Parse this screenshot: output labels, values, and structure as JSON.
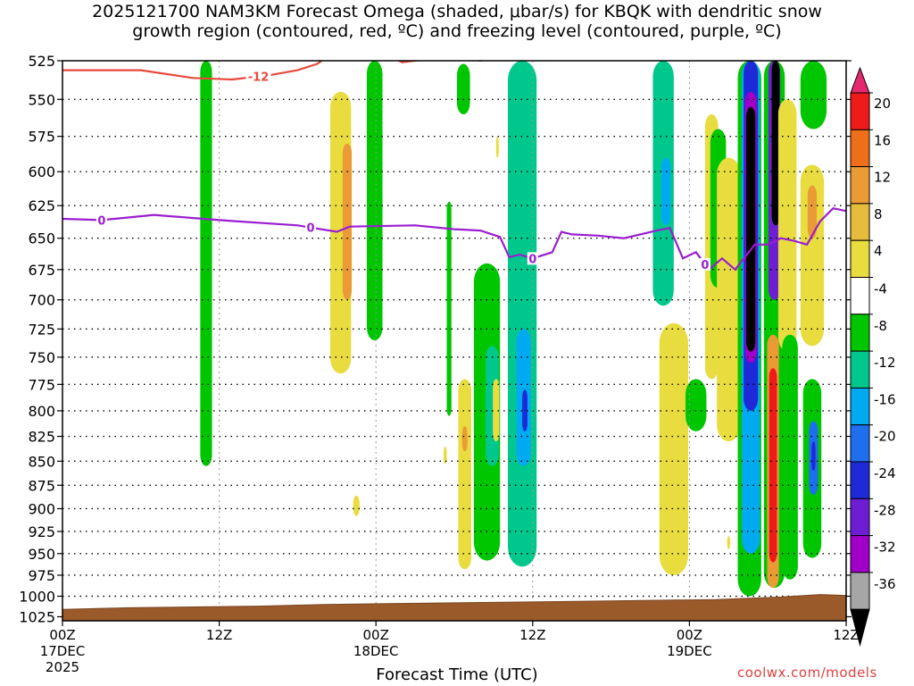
{
  "chart_data": {
    "type": "heatmap",
    "title_line1": "2025121700 NAM3KM Forecast Omega (shaded, μbar/s) for KBQK with dendritic snow",
    "title_line2": "growth region (contoured, red, ºC) and freezing level (contoured, purple, ºC)",
    "xlabel": "Forecast Time (UTC)",
    "credit": "coolwx.com/models",
    "x_ticks": [
      {
        "hours": 0,
        "label": "00Z",
        "sub1": "17DEC",
        "sub2": "2025"
      },
      {
        "hours": 12,
        "label": "12Z",
        "sub1": "",
        "sub2": ""
      },
      {
        "hours": 24,
        "label": "00Z",
        "sub1": "18DEC",
        "sub2": ""
      },
      {
        "hours": 36,
        "label": "12Z",
        "sub1": "",
        "sub2": ""
      },
      {
        "hours": 48,
        "label": "00Z",
        "sub1": "19DEC",
        "sub2": ""
      },
      {
        "hours": 60,
        "label": "12Z",
        "sub1": "",
        "sub2": ""
      }
    ],
    "xlim": [
      0,
      60
    ],
    "y_ticks": [
      525,
      550,
      575,
      600,
      625,
      650,
      675,
      700,
      725,
      750,
      775,
      800,
      825,
      850,
      875,
      900,
      925,
      950,
      975,
      1000,
      1025
    ],
    "ylim": [
      525,
      1030
    ],
    "yscale": "log",
    "grid": true,
    "colorbar": {
      "labels": [
        "20",
        "16",
        "12",
        "8",
        "4",
        "-4",
        "-8",
        "-12",
        "-16",
        "-20",
        "-24",
        "-28",
        "-32",
        "-36"
      ],
      "colors": [
        "#ef1a1a",
        "#ef6e1a",
        "#eb9b36",
        "#e6bc3c",
        "#e8dc3e",
        "#ffffff",
        "#00c600",
        "#00c88c",
        "#00aaf0",
        "#1e6ef0",
        "#1e2ad8",
        "#6e1ed2",
        "#a000c8",
        "#a6a6a6"
      ],
      "top_color": "#e6286e",
      "bottom_color": "#000000"
    },
    "omega_regions": [
      {
        "t": 11.0,
        "p_top": 525,
        "p_bot": 855,
        "halfwidth": 0.45,
        "value": -6
      },
      {
        "t": 21.3,
        "p_top": 545,
        "p_bot": 765,
        "halfwidth": 0.8,
        "value": 5
      },
      {
        "t": 21.8,
        "p_top": 580,
        "p_bot": 700,
        "halfwidth": 0.35,
        "value": 9
      },
      {
        "t": 22.5,
        "p_top": 886,
        "p_bot": 908,
        "halfwidth": 0.25,
        "value": 5
      },
      {
        "t": 23.9,
        "p_top": 525,
        "p_bot": 735,
        "halfwidth": 0.6,
        "value": -6
      },
      {
        "t": 29.6,
        "p_top": 622,
        "p_bot": 805,
        "halfwidth": 0.18,
        "value": -5
      },
      {
        "t": 30.7,
        "p_top": 527,
        "p_bot": 560,
        "halfwidth": 0.5,
        "value": -6
      },
      {
        "t": 30.8,
        "p_top": 770,
        "p_bot": 968,
        "halfwidth": 0.5,
        "value": 6
      },
      {
        "t": 30.8,
        "p_top": 815,
        "p_bot": 840,
        "halfwidth": 0.2,
        "value": 10
      },
      {
        "t": 29.3,
        "p_top": 835,
        "p_bot": 853,
        "halfwidth": 0.12,
        "value": 5
      },
      {
        "t": 32.5,
        "p_top": 670,
        "p_bot": 958,
        "halfwidth": 1.0,
        "value": -7
      },
      {
        "t": 32.9,
        "p_top": 740,
        "p_bot": 855,
        "halfwidth": 0.5,
        "value": -11
      },
      {
        "t": 33.2,
        "p_top": 770,
        "p_bot": 830,
        "halfwidth": 0.25,
        "value": 6
      },
      {
        "t": 35.2,
        "p_top": 525,
        "p_bot": 965,
        "halfwidth": 1.1,
        "value": -8
      },
      {
        "t": 35.3,
        "p_top": 725,
        "p_bot": 855,
        "halfwidth": 0.55,
        "value": -15
      },
      {
        "t": 35.4,
        "p_top": 780,
        "p_bot": 820,
        "halfwidth": 0.2,
        "value": -22
      },
      {
        "t": 33.3,
        "p_top": 575,
        "p_bot": 590,
        "halfwidth": 0.1,
        "value": 5
      },
      {
        "t": 46.0,
        "p_top": 525,
        "p_bot": 705,
        "halfwidth": 0.8,
        "value": -8
      },
      {
        "t": 46.2,
        "p_top": 590,
        "p_bot": 640,
        "halfwidth": 0.35,
        "value": -14
      },
      {
        "t": 46.8,
        "p_top": 720,
        "p_bot": 975,
        "halfwidth": 1.1,
        "value": 6
      },
      {
        "t": 48.5,
        "p_top": 770,
        "p_bot": 820,
        "halfwidth": 0.8,
        "value": -6
      },
      {
        "t": 49.7,
        "p_top": 560,
        "p_bot": 770,
        "halfwidth": 0.5,
        "value": 5
      },
      {
        "t": 50.2,
        "p_top": 570,
        "p_bot": 690,
        "halfwidth": 0.6,
        "value": -5
      },
      {
        "t": 51.0,
        "p_top": 590,
        "p_bot": 830,
        "halfwidth": 0.9,
        "value": 5
      },
      {
        "t": 51.0,
        "p_top": 930,
        "p_bot": 945,
        "halfwidth": 0.12,
        "value": 5
      },
      {
        "t": 52.6,
        "p_top": 525,
        "p_bot": 1000,
        "halfwidth": 0.9,
        "value": -6
      },
      {
        "t": 52.7,
        "p_top": 525,
        "p_bot": 950,
        "halfwidth": 0.7,
        "value": -12
      },
      {
        "t": 52.7,
        "p_top": 525,
        "p_bot": 800,
        "halfwidth": 0.55,
        "value": -22
      },
      {
        "t": 52.7,
        "p_top": 545,
        "p_bot": 755,
        "halfwidth": 0.45,
        "value": -30
      },
      {
        "t": 52.7,
        "p_top": 555,
        "p_bot": 745,
        "halfwidth": 0.35,
        "value": -40
      },
      {
        "t": 54.5,
        "p_top": 525,
        "p_bot": 990,
        "halfwidth": 0.8,
        "value": -6
      },
      {
        "t": 54.5,
        "p_top": 525,
        "p_bot": 700,
        "halfwidth": 0.45,
        "value": -24
      },
      {
        "t": 54.6,
        "p_top": 525,
        "p_bot": 640,
        "halfwidth": 0.3,
        "value": -40
      },
      {
        "t": 54.4,
        "p_top": 730,
        "p_bot": 990,
        "halfwidth": 0.45,
        "value": 10
      },
      {
        "t": 54.4,
        "p_top": 760,
        "p_bot": 960,
        "halfwidth": 0.3,
        "value": 18
      },
      {
        "t": 55.5,
        "p_top": 550,
        "p_bot": 745,
        "halfwidth": 0.7,
        "value": 5
      },
      {
        "t": 55.7,
        "p_top": 730,
        "p_bot": 980,
        "halfwidth": 0.6,
        "value": -6
      },
      {
        "t": 57.4,
        "p_top": 595,
        "p_bot": 740,
        "halfwidth": 0.9,
        "value": 6
      },
      {
        "t": 57.4,
        "p_top": 610,
        "p_bot": 650,
        "halfwidth": 0.35,
        "value": 11
      },
      {
        "t": 57.4,
        "p_top": 770,
        "p_bot": 955,
        "halfwidth": 0.7,
        "value": -7
      },
      {
        "t": 57.5,
        "p_top": 810,
        "p_bot": 885,
        "halfwidth": 0.35,
        "value": -16
      },
      {
        "t": 57.5,
        "p_top": 830,
        "p_bot": 860,
        "halfwidth": 0.15,
        "value": -22
      },
      {
        "t": 57.5,
        "p_top": 525,
        "p_bot": 570,
        "halfwidth": 1.0,
        "value": -6
      }
    ],
    "freezing_level": {
      "label": "0",
      "points": [
        [
          0,
          635
        ],
        [
          3,
          636
        ],
        [
          7,
          632
        ],
        [
          12,
          636
        ],
        [
          18,
          640
        ],
        [
          21,
          645
        ],
        [
          22,
          641
        ],
        [
          27,
          640
        ],
        [
          30,
          643
        ],
        [
          32,
          644
        ],
        [
          33.5,
          649
        ],
        [
          34.2,
          665
        ],
        [
          35,
          663
        ],
        [
          36,
          666
        ],
        [
          37.5,
          661
        ],
        [
          38.2,
          645
        ],
        [
          39,
          647
        ],
        [
          41,
          648
        ],
        [
          43,
          650
        ],
        [
          45.5,
          644
        ],
        [
          46.5,
          642
        ],
        [
          47.5,
          666
        ],
        [
          48.5,
          661
        ],
        [
          49.5,
          675
        ],
        [
          50.5,
          666
        ],
        [
          51.5,
          675
        ],
        [
          53,
          655
        ],
        [
          54,
          655
        ],
        [
          55,
          650
        ],
        [
          56,
          652
        ],
        [
          57,
          655
        ],
        [
          58,
          637
        ],
        [
          59,
          627
        ],
        [
          60,
          629
        ]
      ],
      "label_positions": [
        3,
        19,
        36,
        49.2
      ]
    },
    "dgz_contour": {
      "label": "-12",
      "points": [
        [
          0,
          531
        ],
        [
          6,
          531
        ],
        [
          10,
          536
        ],
        [
          13,
          537
        ],
        [
          16,
          534
        ],
        [
          18,
          531
        ],
        [
          19.5,
          527
        ],
        [
          20,
          524
        ]
      ],
      "label_positions": [
        15
      ]
    },
    "dgz_top_segments": [
      [
        [
          25.5,
          524
        ],
        [
          26,
          526
        ],
        [
          27,
          525
        ],
        [
          28.5,
          524
        ]
      ],
      [
        [
          31,
          524
        ],
        [
          32,
          525
        ],
        [
          33,
          524
        ]
      ]
    ],
    "terrain": [
      [
        0,
        1016
      ],
      [
        5,
        1014
      ],
      [
        10,
        1013
      ],
      [
        15,
        1012
      ],
      [
        20,
        1010
      ],
      [
        25,
        1009
      ],
      [
        30,
        1008
      ],
      [
        35,
        1007
      ],
      [
        40,
        1006
      ],
      [
        45,
        1005
      ],
      [
        50,
        1004
      ],
      [
        55,
        1001
      ],
      [
        58,
        998
      ],
      [
        60,
        999
      ]
    ]
  }
}
